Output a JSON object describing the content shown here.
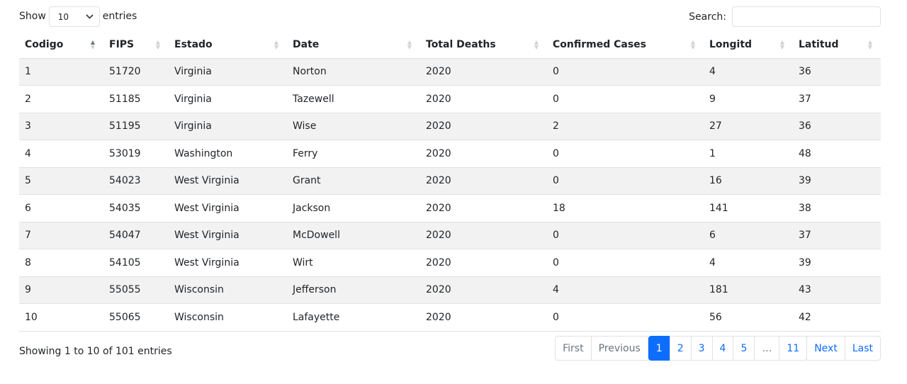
{
  "length": {
    "show_label": "Show",
    "value": "10",
    "entries_label": "entries"
  },
  "search": {
    "label": "Search:",
    "value": ""
  },
  "table": {
    "columns": [
      "Codigo",
      "FIPS",
      "Estado",
      "Date",
      "Total Deaths",
      "Confirmed Cases",
      "Longitd",
      "Latitud"
    ],
    "rows": [
      [
        "1",
        "51720",
        "Virginia",
        "Norton",
        "2020",
        "0",
        "4",
        "36"
      ],
      [
        "2",
        "51185",
        "Virginia",
        "Tazewell",
        "2020",
        "0",
        "9",
        "37"
      ],
      [
        "3",
        "51195",
        "Virginia",
        "Wise",
        "2020",
        "2",
        "27",
        "36"
      ],
      [
        "4",
        "53019",
        "Washington",
        "Ferry",
        "2020",
        "0",
        "1",
        "48"
      ],
      [
        "5",
        "54023",
        "West Virginia",
        "Grant",
        "2020",
        "0",
        "16",
        "39"
      ],
      [
        "6",
        "54035",
        "West Virginia",
        "Jackson",
        "2020",
        "18",
        "141",
        "38"
      ],
      [
        "7",
        "54047",
        "West Virginia",
        "McDowell",
        "2020",
        "0",
        "6",
        "37"
      ],
      [
        "8",
        "54105",
        "West Virginia",
        "Wirt",
        "2020",
        "0",
        "4",
        "39"
      ],
      [
        "9",
        "55055",
        "Wisconsin",
        "Jefferson",
        "2020",
        "4",
        "181",
        "43"
      ],
      [
        "10",
        "55065",
        "Wisconsin",
        "Lafayette",
        "2020",
        "0",
        "56",
        "42"
      ]
    ]
  },
  "info": "Showing 1 to 10 of 101 entries",
  "pagination": {
    "first": "First",
    "previous": "Previous",
    "pages": [
      "1",
      "2",
      "3",
      "4",
      "5",
      "…",
      "11"
    ],
    "active_page": "1",
    "next": "Next",
    "last": "Last"
  }
}
